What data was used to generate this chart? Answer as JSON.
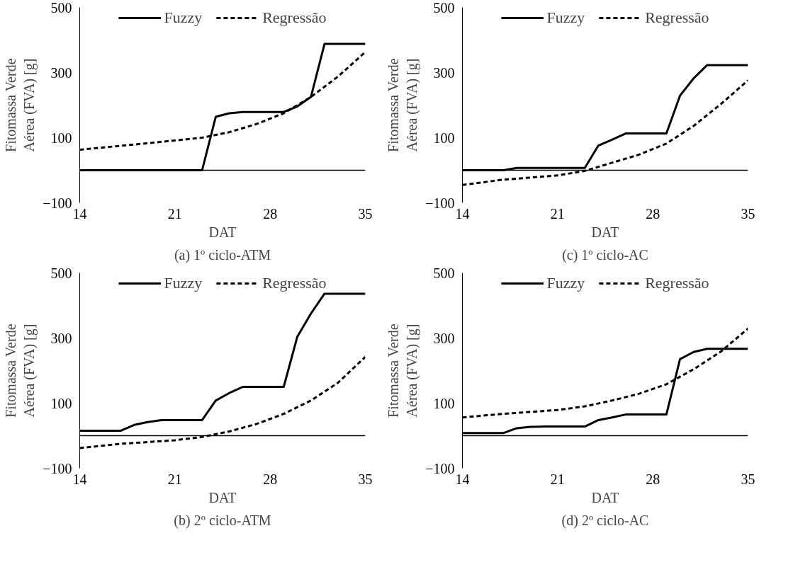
{
  "chart_data": [
    {
      "type": "line",
      "title": "(a) 1º ciclo-ATM",
      "xlabel": "DAT",
      "ylabel": "Fitomassa Verde\nAérea (FVA) [g]",
      "xlim": [
        14,
        35
      ],
      "xticks": [
        14,
        21,
        28,
        35
      ],
      "ylim": [
        -100,
        500
      ],
      "yticks": [
        -100,
        100,
        300,
        500
      ],
      "grid": false,
      "legend": "top",
      "series": [
        {
          "name": "Fuzzy",
          "color": "#000000",
          "line_style": "solid",
          "x": [
            14,
            23,
            24,
            25,
            26,
            29,
            30,
            31,
            32,
            35
          ],
          "values": [
            0,
            0,
            164,
            175,
            179,
            179,
            196,
            225,
            388,
            388
          ]
        },
        {
          "name": "Regressão",
          "color": "#000000",
          "line_style": "dashed",
          "x": [
            14,
            19,
            23,
            25,
            27,
            29,
            31,
            33,
            35
          ],
          "values": [
            63,
            83,
            100,
            117,
            142,
            175,
            225,
            288,
            363
          ]
        }
      ]
    },
    {
      "type": "line",
      "title": "(c) 1º ciclo-AC",
      "xlabel": "DAT",
      "ylabel": "Fitomassa Verde\nAérea (FVA) [g]",
      "xlim": [
        14,
        35
      ],
      "xticks": [
        14,
        21,
        28,
        35
      ],
      "ylim": [
        -100,
        500
      ],
      "yticks": [
        -100,
        100,
        300,
        500
      ],
      "grid": false,
      "legend": "top",
      "series": [
        {
          "name": "Fuzzy",
          "color": "#000000",
          "line_style": "solid",
          "x": [
            14,
            17,
            18,
            23,
            24,
            25,
            26,
            29,
            30,
            31,
            32,
            35
          ],
          "values": [
            0,
            0,
            7,
            7,
            76,
            94,
            113,
            113,
            229,
            282,
            323,
            323
          ]
        },
        {
          "name": "Regressão",
          "color": "#000000",
          "line_style": "dashed",
          "x": [
            14,
            17,
            21,
            23,
            25,
            27,
            29,
            31,
            33,
            35
          ],
          "values": [
            -45,
            -29,
            -16,
            -2,
            23,
            48,
            82,
            136,
            203,
            276
          ]
        }
      ]
    },
    {
      "type": "line",
      "title": "(b) 2º ciclo-ATM",
      "xlabel": "DAT",
      "ylabel": "Fitomassa Verde\nAérea (FVA) [g]",
      "xlim": [
        14,
        35
      ],
      "xticks": [
        14,
        21,
        28,
        35
      ],
      "ylim": [
        -100,
        500
      ],
      "yticks": [
        -100,
        100,
        300,
        500
      ],
      "grid": false,
      "legend": "top",
      "series": [
        {
          "name": "Fuzzy",
          "color": "#000000",
          "line_style": "solid",
          "x": [
            14,
            17,
            18,
            19,
            20,
            23,
            24,
            25,
            26,
            29,
            30,
            31,
            32,
            35
          ],
          "values": [
            15,
            15,
            33,
            42,
            48,
            48,
            108,
            131,
            150,
            150,
            304,
            375,
            436,
            436
          ]
        },
        {
          "name": "Regressão",
          "color": "#000000",
          "line_style": "dashed",
          "x": [
            14,
            17,
            21,
            23,
            25,
            27,
            29,
            31,
            33,
            35
          ],
          "values": [
            -38,
            -25,
            -14,
            -4,
            13,
            36,
            67,
            108,
            163,
            242
          ]
        }
      ]
    },
    {
      "type": "line",
      "title": "(d) 2º ciclo-AC",
      "xlabel": "DAT",
      "ylabel": "Fitomassa Verde\nAérea (FVA) [g]",
      "xlim": [
        14,
        35
      ],
      "xticks": [
        14,
        21,
        28,
        35
      ],
      "ylim": [
        -100,
        500
      ],
      "yticks": [
        -100,
        100,
        300,
        500
      ],
      "grid": false,
      "legend": "top",
      "series": [
        {
          "name": "Fuzzy",
          "color": "#000000",
          "line_style": "solid",
          "x": [
            14,
            17,
            18,
            19,
            20,
            23,
            24,
            25,
            26,
            29,
            30,
            31,
            32,
            35
          ],
          "values": [
            8,
            8,
            23,
            27,
            28,
            28,
            48,
            56,
            65,
            65,
            235,
            257,
            267,
            267
          ]
        },
        {
          "name": "Regressão",
          "color": "#000000",
          "line_style": "dashed",
          "x": [
            14,
            17,
            21,
            23,
            25,
            27,
            29,
            31,
            33,
            35
          ],
          "values": [
            56,
            67,
            79,
            90,
            108,
            129,
            158,
            204,
            258,
            329
          ]
        }
      ]
    }
  ]
}
